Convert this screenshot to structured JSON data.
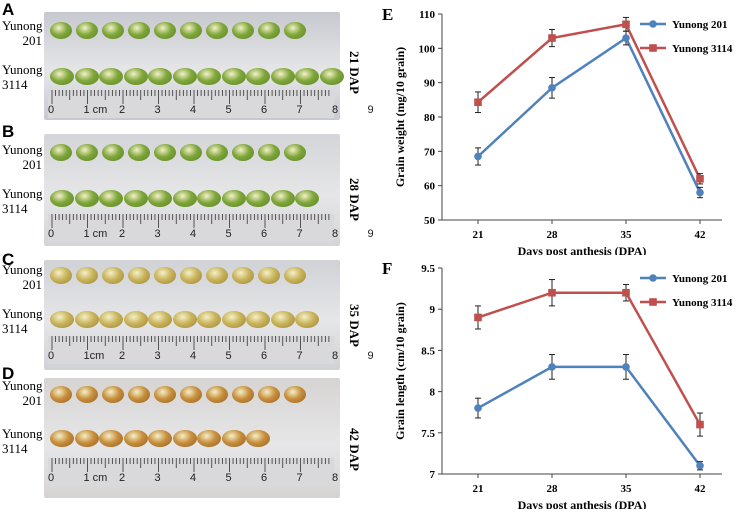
{
  "panels": [
    {
      "label": "A",
      "variety_top": "Yunong\n201",
      "variety_bottom": "Yunong\n3114",
      "dap": "21 DAP",
      "grain_color": "#7fa73a",
      "grain_edge": "#5d8424",
      "bg": "#c6c9cf",
      "top_count": 10,
      "bottom_count": 12,
      "ruler": [
        "0",
        "1 cm",
        "2",
        "3",
        "4",
        "5",
        "6",
        "7",
        "8",
        "9"
      ]
    },
    {
      "label": "B",
      "variety_top": "Yunong\n201",
      "variety_bottom": "Yunong\n3114",
      "dap": "28 DAP",
      "grain_color": "#7ea63a",
      "grain_edge": "#5c8225",
      "bg": "#d3d5d8",
      "top_count": 10,
      "bottom_count": 11,
      "ruler": [
        "0",
        "1 cm",
        "2",
        "3",
        "4",
        "5",
        "6",
        "7",
        "8",
        "9"
      ]
    },
    {
      "label": "C",
      "variety_top": "Yunong\n201",
      "variety_bottom": "Yunong\n3114",
      "dap": "35 DAP",
      "grain_color": "#c9b35a",
      "grain_edge": "#9b8437",
      "bg": "#d0d2d6",
      "top_count": 10,
      "bottom_count": 11,
      "ruler": [
        "0",
        "1cm",
        "2",
        "3",
        "4",
        "5",
        "6",
        "7",
        "8",
        "9"
      ]
    },
    {
      "label": "D",
      "variety_top": "Yunong\n201",
      "variety_bottom": "Yunong\n3114",
      "dap": "42 DAP",
      "grain_color": "#c88f3d",
      "grain_edge": "#935f1f",
      "bg": "#d6d4d2",
      "top_count": 10,
      "bottom_count": 9,
      "ruler": [
        "0",
        "1 cm",
        "2",
        "3",
        "4",
        "5",
        "6",
        "7",
        "8"
      ]
    }
  ],
  "chart_data": [
    {
      "panel": "E",
      "type": "line",
      "x": [
        21,
        28,
        35,
        42
      ],
      "xticks": [
        "21",
        "28",
        "35",
        "42"
      ],
      "xlabel": "Days post anthesis (DPA)",
      "ylabel": "Grain weight (mg/10 grain)",
      "ylim": [
        50,
        110
      ],
      "yticks": [
        "50",
        "60",
        "70",
        "80",
        "90",
        "100",
        "110"
      ],
      "legend_position": "top-right",
      "series": [
        {
          "name": "Yunong 201",
          "values": [
            68.5,
            88.5,
            103.0,
            58.0
          ],
          "errors": [
            2.5,
            3.0,
            2.0,
            1.5
          ],
          "color": "#4f81bd",
          "marker": "circle"
        },
        {
          "name": "Yunong 3114",
          "values": [
            84.3,
            103.0,
            107.0,
            62.0
          ],
          "errors": [
            3.0,
            2.5,
            2.0,
            1.5
          ],
          "color": "#c0504d",
          "marker": "square"
        }
      ]
    },
    {
      "panel": "F",
      "type": "line",
      "x": [
        21,
        28,
        35,
        42
      ],
      "xticks": [
        "21",
        "28",
        "35",
        "42"
      ],
      "xlabel": "Days post anthesis (DPA)",
      "ylabel": "Grain length (cm/10 grain)",
      "ylim": [
        7,
        9.5
      ],
      "yticks": [
        "7",
        "7.5",
        "8",
        "8.5",
        "9",
        "9.5"
      ],
      "legend_position": "top-right",
      "series": [
        {
          "name": "Yunong 201",
          "values": [
            7.8,
            8.3,
            8.3,
            7.1
          ],
          "errors": [
            0.12,
            0.15,
            0.15,
            0.05
          ],
          "color": "#4f81bd",
          "marker": "circle"
        },
        {
          "name": "Yunong 3114",
          "values": [
            8.9,
            9.2,
            9.2,
            7.6
          ],
          "errors": [
            0.14,
            0.16,
            0.1,
            0.14
          ],
          "color": "#c0504d",
          "marker": "square"
        }
      ]
    }
  ]
}
